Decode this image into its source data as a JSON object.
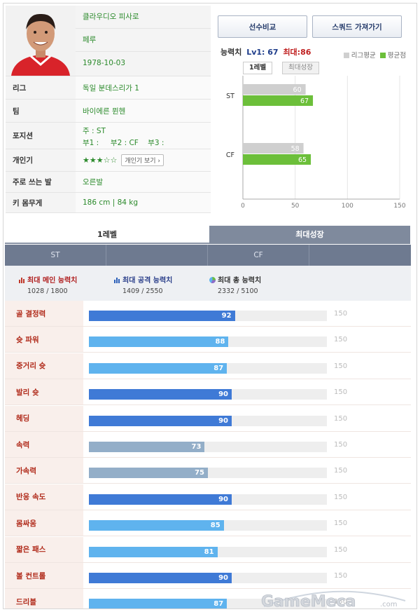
{
  "player": {
    "name": "클라우디오 피사로",
    "nation": "페루",
    "birth": "1978-10-03",
    "rows": [
      {
        "key": "리그",
        "value": "독일 분데스리가 1"
      },
      {
        "key": "팀",
        "value": "바이에른 뮌헨"
      }
    ],
    "position_key": "포지션",
    "position_lines": [
      "주 : ST",
      "부1 :     부2 : CF    부3 :"
    ],
    "popularity_key": "개인기",
    "popularity_stars": "★★★☆☆",
    "popularity_button": "개인기 보기 ›",
    "foot_key": "주로 쓰는 발",
    "foot_value": "오른발",
    "body_key": "키 몸무게",
    "body_value": "186 cm  |  84 kg"
  },
  "buttons": {
    "compare": "선수비교",
    "squad": "스쿼드 가져가기"
  },
  "stat_header": {
    "label": "능력치",
    "lv": "Lv1: 67",
    "max": "최대:86"
  },
  "legend": [
    {
      "name": "리그평균",
      "color": "#cfcfcf"
    },
    {
      "name": "평균점",
      "color": "#6cbf3a"
    }
  ],
  "mini_tabs": [
    "1레벨",
    "최대성장"
  ],
  "chart_data": {
    "type": "bar",
    "orientation": "horizontal",
    "categories": [
      "ST",
      "CF"
    ],
    "series": [
      {
        "name": "리그평균",
        "values": [
          60,
          58
        ],
        "color": "#cfcfcf"
      },
      {
        "name": "평균점",
        "values": [
          67,
          65
        ],
        "color": "#6cbf3a"
      }
    ],
    "xticks": [
      0,
      50,
      100,
      150
    ],
    "xlim": [
      0,
      150
    ],
    "legend": "top-right"
  },
  "level_tabs": [
    "1레벨",
    "최대성장"
  ],
  "position_bar": [
    "ST",
    "",
    "CF",
    ""
  ],
  "summary": [
    {
      "title": "최대 메인 능력치",
      "value": "1028 / 1800",
      "icon": "bar-chart-red-icon"
    },
    {
      "title": "최대 공격 능력치",
      "value": "1409 / 2550",
      "icon": "bar-chart-blue-icon"
    },
    {
      "title": "최대 총 능력치",
      "value": "2332 / 5100",
      "icon": "pie-chart-icon"
    }
  ],
  "attributes": {
    "max_label": "150",
    "items": [
      {
        "label": "골 결정력",
        "value": 92,
        "color": "#3f7ad6"
      },
      {
        "label": "슛 파워",
        "value": 88,
        "color": "#5fb3ee"
      },
      {
        "label": "중거리 슛",
        "value": 87,
        "color": "#5fb3ee"
      },
      {
        "label": "발리 슛",
        "value": 90,
        "color": "#3f7ad6"
      },
      {
        "label": "헤딩",
        "value": 90,
        "color": "#3f7ad6"
      },
      {
        "label": "속력",
        "value": 73,
        "color": "#93aec8"
      },
      {
        "label": "가속력",
        "value": 75,
        "color": "#93aec8"
      },
      {
        "label": "반응 속도",
        "value": 90,
        "color": "#3f7ad6"
      },
      {
        "label": "몸싸움",
        "value": 85,
        "color": "#5fb3ee"
      },
      {
        "label": "짧은 패스",
        "value": 81,
        "color": "#5fb3ee"
      },
      {
        "label": "볼 컨트롤",
        "value": 90,
        "color": "#3f7ad6"
      },
      {
        "label": "드리블",
        "value": 87,
        "color": "#5fb3ee"
      }
    ]
  },
  "watermark": "GameMeca.com"
}
